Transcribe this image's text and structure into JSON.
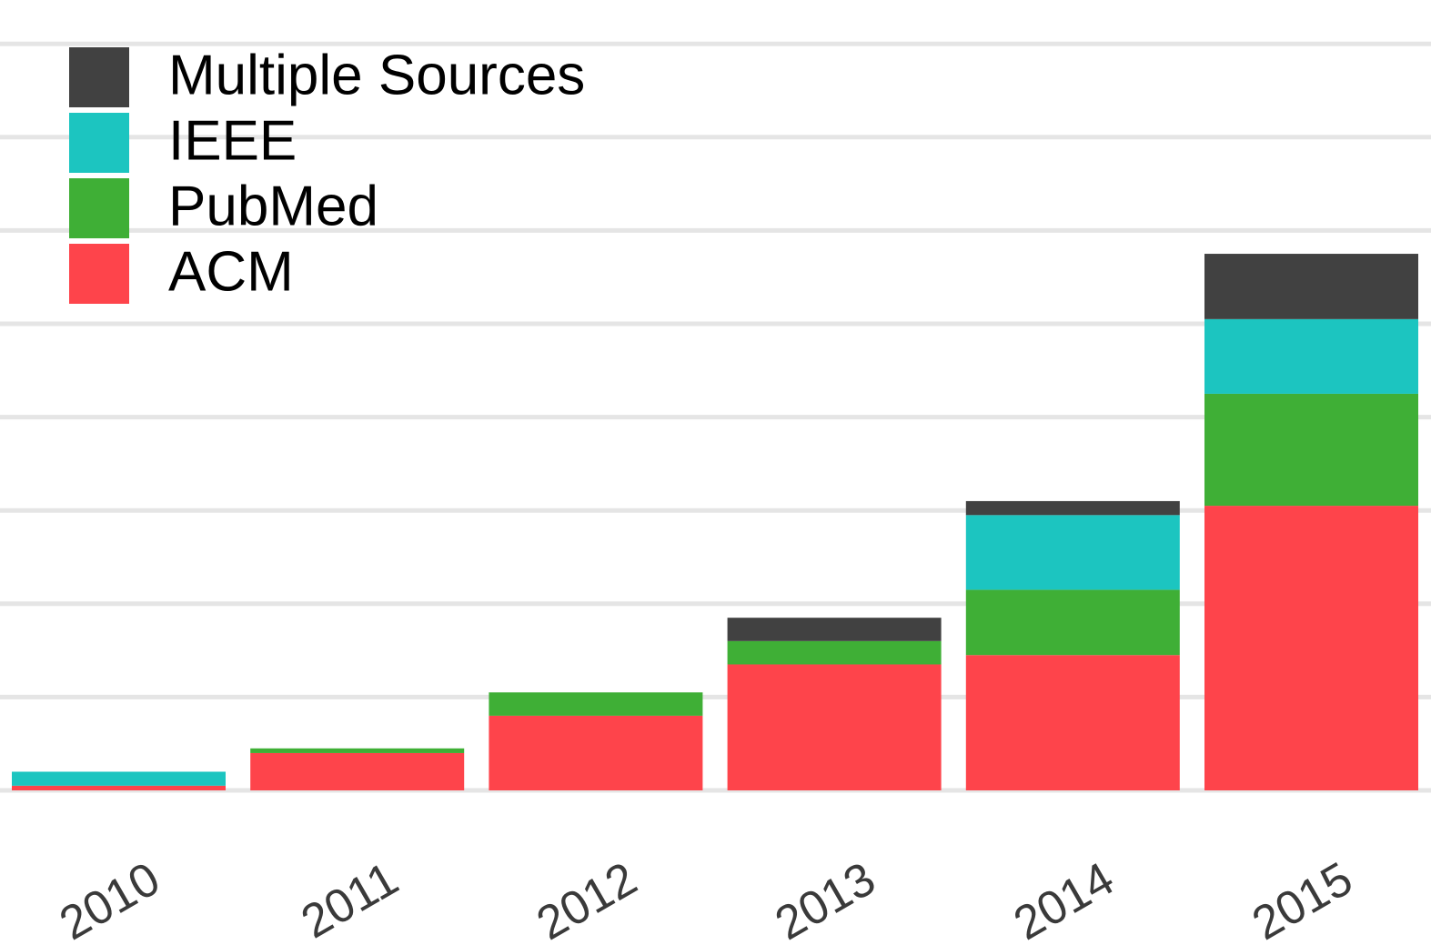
{
  "chart_data": {
    "type": "bar",
    "stacked": true,
    "categories": [
      "2010",
      "2011",
      "2012",
      "2013",
      "2014",
      "2015"
    ],
    "series": [
      {
        "name": "ACM",
        "color": "#fe444b",
        "values": [
          1,
          8,
          16,
          27,
          29,
          61
        ]
      },
      {
        "name": "PubMed",
        "color": "#3faf36",
        "values": [
          0,
          1,
          5,
          5,
          14,
          24
        ]
      },
      {
        "name": "IEEE",
        "color": "#1cc5c0",
        "values": [
          3,
          0,
          0,
          0,
          16,
          16
        ]
      },
      {
        "name": "Multiple Sources",
        "color": "#414141",
        "values": [
          0,
          0,
          0,
          5,
          3,
          14
        ]
      }
    ],
    "ylim": [
      0,
      162
    ],
    "y_gridlines": [
      0,
      20,
      40,
      60,
      80,
      100,
      120,
      140,
      160
    ],
    "grid": true,
    "grid_color": "#e5e5e5",
    "y_tick_labels_visible": false,
    "legend": {
      "placement": "top-left",
      "order": [
        "Multiple Sources",
        "IEEE",
        "PubMed",
        "ACM"
      ]
    }
  }
}
